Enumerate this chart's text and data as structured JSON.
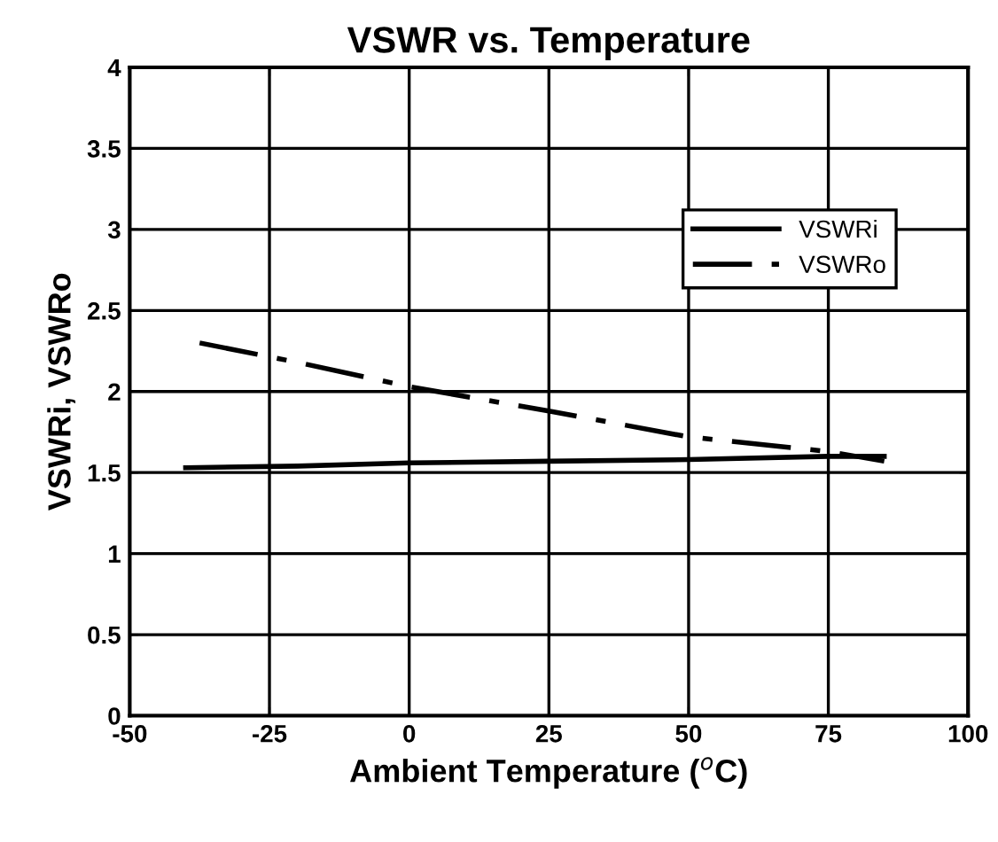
{
  "chart_data": {
    "type": "line",
    "title": "VSWR vs. Temperature",
    "xlabel": "Ambient Temperature ($^{o}$C)",
    "ylabel": "VSWRi, VSWRo",
    "xlim": [
      -50,
      100
    ],
    "xticks": [
      -50,
      -25,
      0,
      25,
      50,
      75,
      100
    ],
    "ylim": [
      0,
      4
    ],
    "yticks": [
      0,
      0.5,
      1,
      1.5,
      2,
      2.5,
      3,
      3.5,
      4
    ],
    "grid": true,
    "legend": "top right",
    "series": [
      {
        "name": "VSWRi",
        "color": "#000000",
        "line_style": "solid",
        "x": [
          -40,
          -20,
          0,
          25,
          50,
          75,
          85
        ],
        "values": [
          1.53,
          1.54,
          1.56,
          1.57,
          1.58,
          1.6,
          1.6
        ]
      },
      {
        "name": "VSWRo",
        "color": "#000000",
        "line_style": "dashdot",
        "x": [
          -37.5,
          -20,
          0,
          25,
          50,
          75,
          85
        ],
        "values": [
          2.3,
          2.18,
          2.03,
          1.88,
          1.72,
          1.63,
          1.57
        ]
      }
    ]
  }
}
